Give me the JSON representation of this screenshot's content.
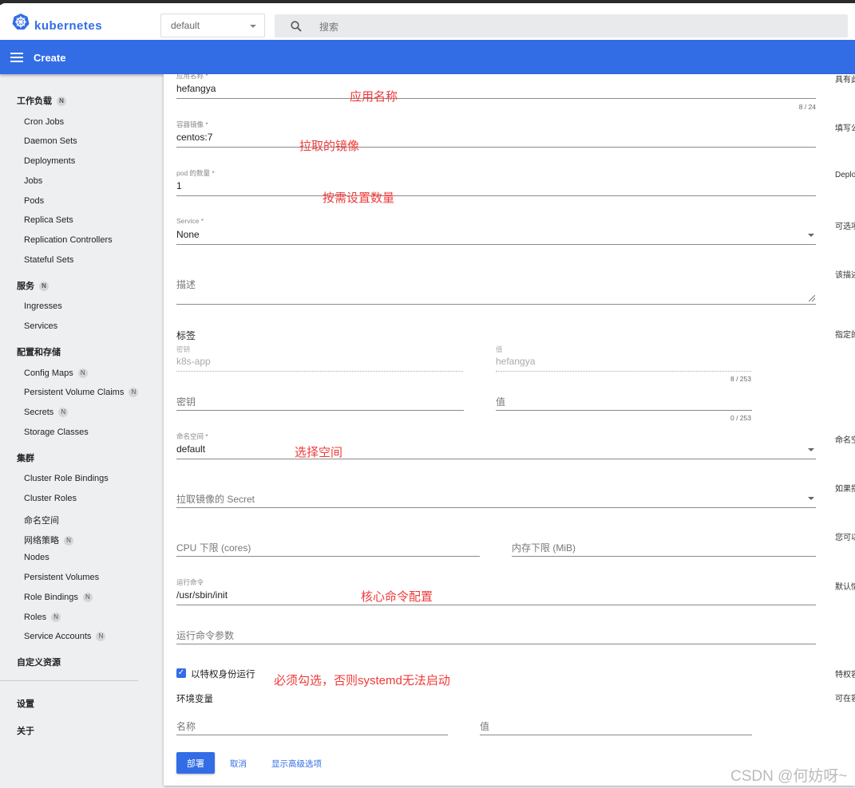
{
  "header": {
    "brand": "kubernetes",
    "namespace": "default",
    "search_placeholder": "搜索",
    "title": "Create",
    "accent": "#326de6"
  },
  "sidebar": {
    "items": [
      {
        "label": "工作负载",
        "heading": true,
        "badge": "N"
      },
      {
        "label": "Cron Jobs"
      },
      {
        "label": "Daemon Sets"
      },
      {
        "label": "Deployments"
      },
      {
        "label": "Jobs"
      },
      {
        "label": "Pods"
      },
      {
        "label": "Replica Sets"
      },
      {
        "label": "Replication Controllers"
      },
      {
        "label": "Stateful Sets"
      },
      {
        "label": "服务",
        "heading": true,
        "badge": "N"
      },
      {
        "label": "Ingresses"
      },
      {
        "label": "Services"
      },
      {
        "label": "配置和存储",
        "heading": true
      },
      {
        "label": "Config Maps",
        "badge": "N"
      },
      {
        "label": "Persistent Volume Claims",
        "badge": "N"
      },
      {
        "label": "Secrets",
        "badge": "N"
      },
      {
        "label": "Storage Classes"
      },
      {
        "label": "集群",
        "heading": true
      },
      {
        "label": "Cluster Role Bindings"
      },
      {
        "label": "Cluster Roles"
      },
      {
        "label": "命名空间"
      },
      {
        "label": "网络策略",
        "badge": "N"
      },
      {
        "label": "Nodes"
      },
      {
        "label": "Persistent Volumes"
      },
      {
        "label": "Role Bindings",
        "badge": "N"
      },
      {
        "label": "Roles",
        "badge": "N"
      },
      {
        "label": "Service Accounts",
        "badge": "N"
      },
      {
        "label": "自定义资源",
        "heading": true
      },
      {
        "label": "设置",
        "heading": true
      },
      {
        "label": "关于",
        "heading": true
      }
    ]
  },
  "form": {
    "app_name": {
      "label": "应用名称 *",
      "value": "hefangya",
      "counter": "8 / 24"
    },
    "image": {
      "label": "容器镜像 *",
      "value": "centos:7"
    },
    "pods": {
      "label": "pod 的数量 *",
      "value": "1"
    },
    "service": {
      "label": "Service *",
      "value": "None"
    },
    "description": {
      "placeholder": "描述"
    },
    "labels": {
      "heading": "标签",
      "key_label": "密钥",
      "key_value": "k8s-app",
      "value_label": "值",
      "value_value": "hefangya",
      "counter1": "8 / 253",
      "key_placeholder": "密钥",
      "value_placeholder": "值",
      "counter2": "0 / 253"
    },
    "namespace": {
      "label": "命名空间 *",
      "value": "default"
    },
    "image_secret": {
      "placeholder": "拉取镜像的 Secret"
    },
    "cpu": {
      "placeholder": "CPU 下限 (cores)"
    },
    "memory": {
      "placeholder": "内存下限 (MiB)"
    },
    "command": {
      "label": "运行命令",
      "value": "/usr/sbin/init"
    },
    "command_args": {
      "placeholder": "运行命令参数"
    },
    "privileged": {
      "label": "以特权身份运行",
      "checked": true
    },
    "env": {
      "heading": "环境变量",
      "name_placeholder": "名称",
      "value_placeholder": "值"
    },
    "buttons": {
      "deploy": "部署",
      "cancel": "取消",
      "advanced": "显示高级选项"
    }
  },
  "annotations": [
    "应用名称",
    "拉取的镜像",
    "按需设置数量",
    "选择空间",
    "核心命令配置",
    "必须勾选，否则systemd无法启动"
  ],
  "help": [
    "具有此",
    "填写公",
    "Deplo",
    "可选项",
    "该描述",
    "指定的",
    "命名空",
    "如果指",
    "您可以",
    "默认情",
    "特权容",
    "可在容"
  ],
  "watermark": "CSDN @何妨呀~"
}
